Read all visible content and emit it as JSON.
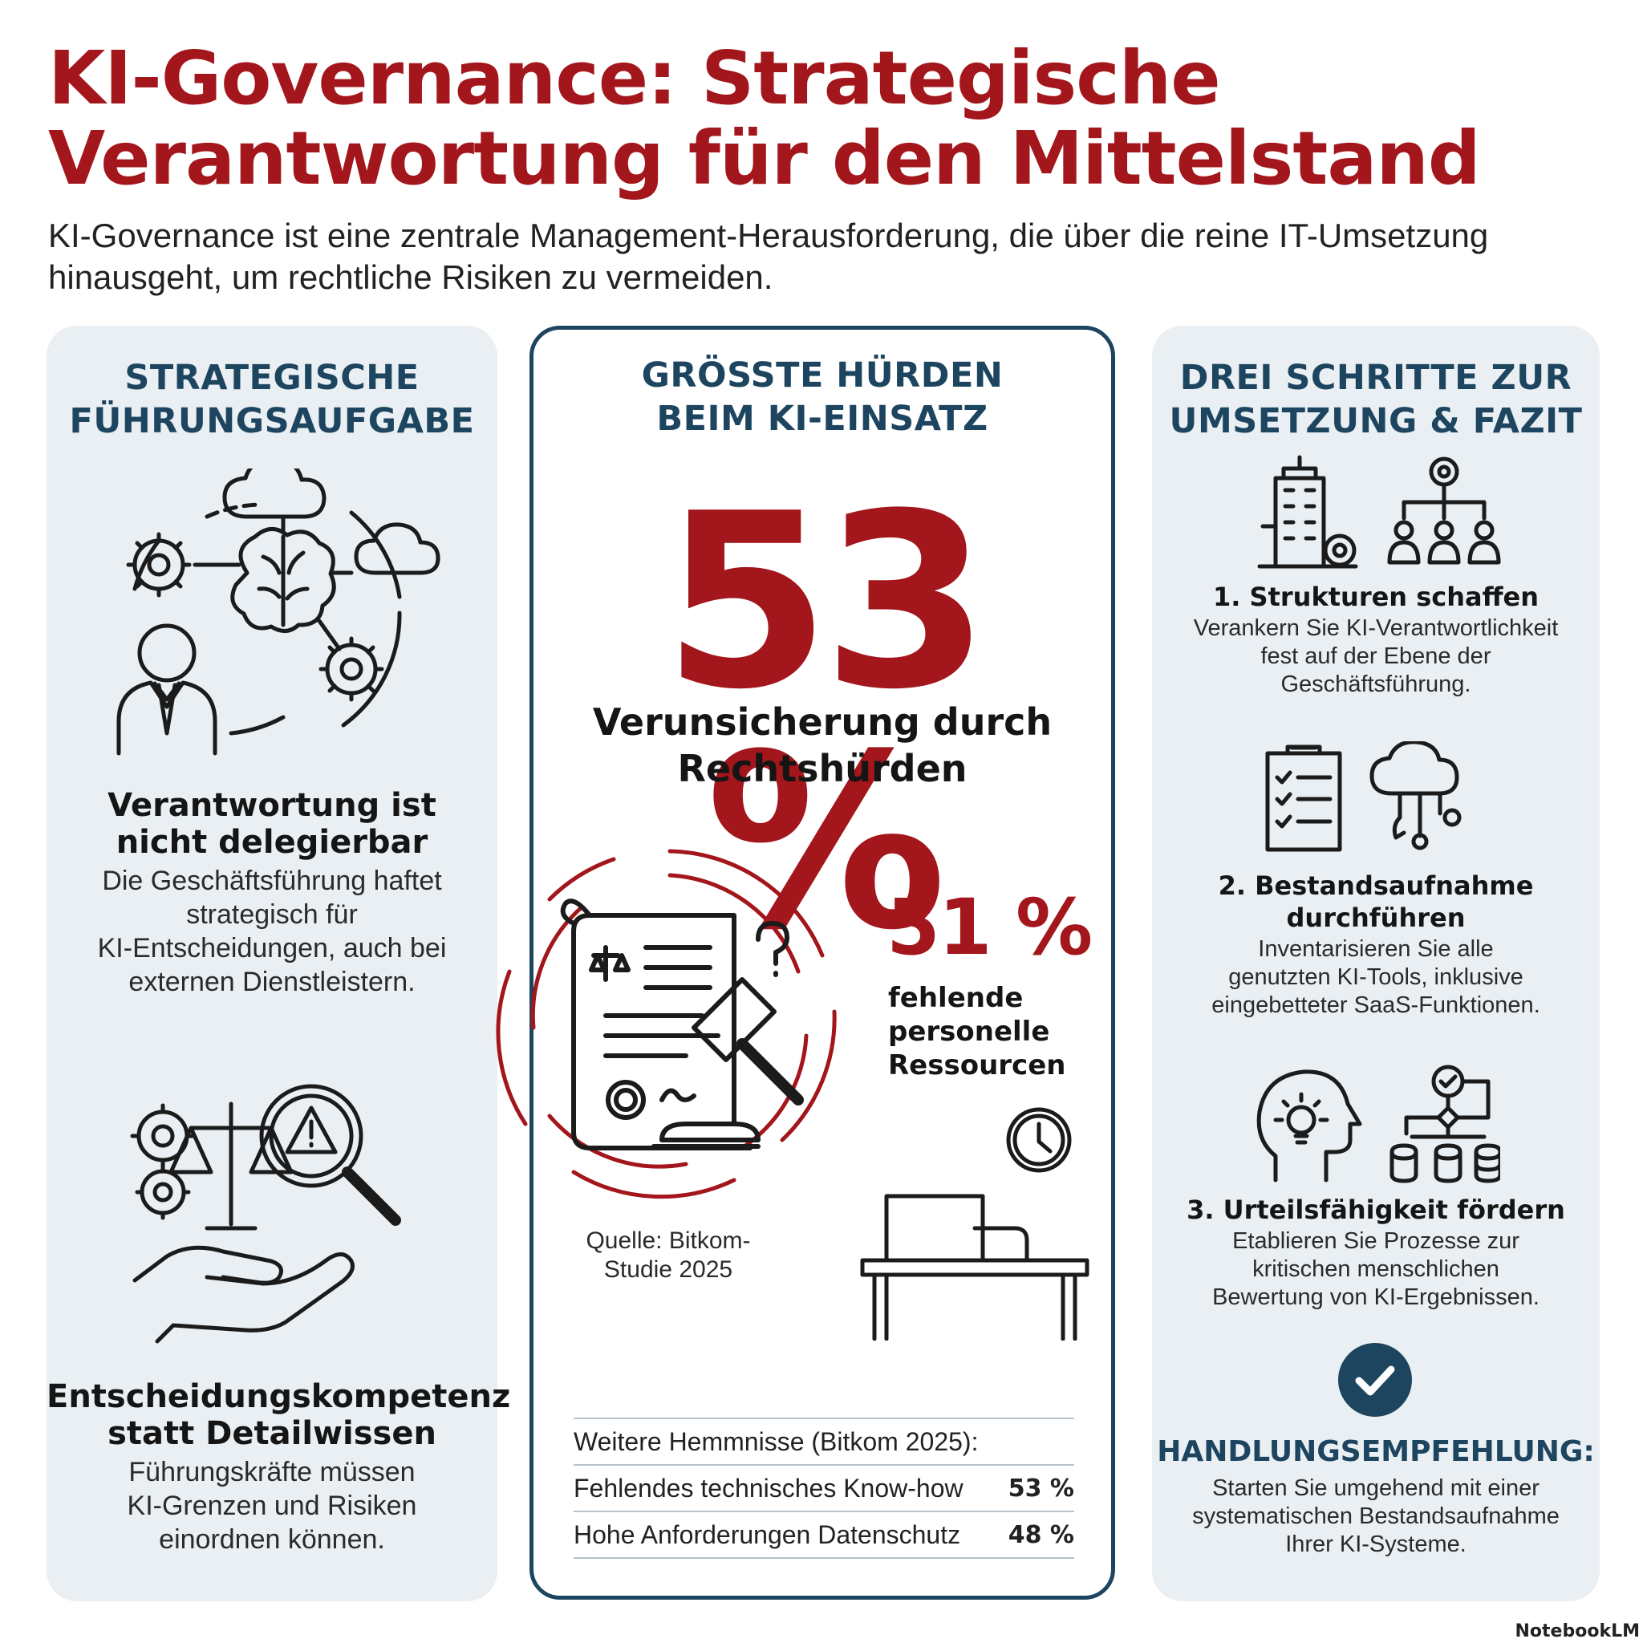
{
  "header": {
    "title_lines": [
      "KI-Governance: Strategische",
      "Verantwortung für den Mittelstand"
    ],
    "subtitle_lines": [
      "KI-Governance ist eine zentrale Management-Herausforderung, die über die reine IT-Umsetzung",
      "hinausgeht, um rechtliche Risiken zu vermeiden."
    ]
  },
  "left": {
    "heading_lines": [
      "STRATEGISCHE",
      "FÜHRUNGSAUFGABE"
    ],
    "block1": {
      "icon": "leader-brain-network-icon",
      "title_lines": [
        "Verantwortung ist",
        "nicht delegierbar"
      ],
      "text_lines": [
        "Die Geschäftsführung haftet",
        "strategisch für",
        "KI-Entscheidungen, auch bei",
        "externen Dienstleistern."
      ]
    },
    "block2": {
      "icon": "risk-magnifier-scale-hand-icon",
      "title_lines": [
        "Entscheidungskompetenz",
        "statt Detailwissen"
      ],
      "text_lines": [
        "Führungskräfte müssen",
        "KI-Grenzen und Risiken",
        "einordnen können."
      ]
    }
  },
  "center": {
    "heading_lines": [
      "GRÖSSTE HÜRDEN",
      "BEIM KI-EINSATZ"
    ],
    "main_stat": "53 %",
    "main_label_lines": [
      "Verunsicherung durch",
      "Rechtshürden"
    ],
    "second_stat": "51 %",
    "second_label_lines": [
      "fehlende",
      "personelle",
      "Ressourcen"
    ],
    "source_lines": [
      "Quelle: Bitkom-",
      "Studie 2025"
    ],
    "table": {
      "header": "Weitere Hemmnisse (Bitkom 2025):",
      "rows": [
        {
          "label": "Fehlendes technisches Know-how",
          "value": "53 %"
        },
        {
          "label": "Hohe Anforderungen Datenschutz",
          "value": "48 %"
        }
      ]
    }
  },
  "right": {
    "heading_lines": [
      "DREI SCHRITTE ZUR",
      "UMSETZUNG & FAZIT"
    ],
    "steps": [
      {
        "icon": "building-org-chart-icon",
        "title_lines": [
          "1. Strukturen schaffen"
        ],
        "text_lines": [
          "Verankern Sie KI-Verantwortlichkeit",
          "fest auf der Ebene der",
          "Geschäftsführung."
        ]
      },
      {
        "icon": "checklist-cloud-tools-icon",
        "title_lines": [
          "2. Bestandsaufnahme",
          "durchführen"
        ],
        "text_lines": [
          "Inventarisieren Sie alle",
          "genutzten KI-Tools, inklusive",
          "eingebetteter SaaS-Funktionen."
        ]
      },
      {
        "icon": "idea-head-flowchart-icon",
        "title_lines": [
          "3. Urteilsfähigkeit fördern"
        ],
        "text_lines": [
          "Etablieren Sie Prozesse zur",
          "kritischen menschlichen",
          "Bewertung von KI-Ergebnissen."
        ]
      }
    ],
    "recommendation": {
      "icon": "check-circle-icon",
      "title": "HANDLUNGSEMPFEHLUNG:",
      "text_lines": [
        "Starten Sie umgehend mit einer",
        "systematischen Bestandsaufnahme",
        "Ihrer KI-Systeme."
      ]
    }
  },
  "colors": {
    "accent_red": "#a3161b",
    "navy": "#1d4560",
    "panel_bg": "#e9eff3"
  },
  "brand": "NotebookLM"
}
